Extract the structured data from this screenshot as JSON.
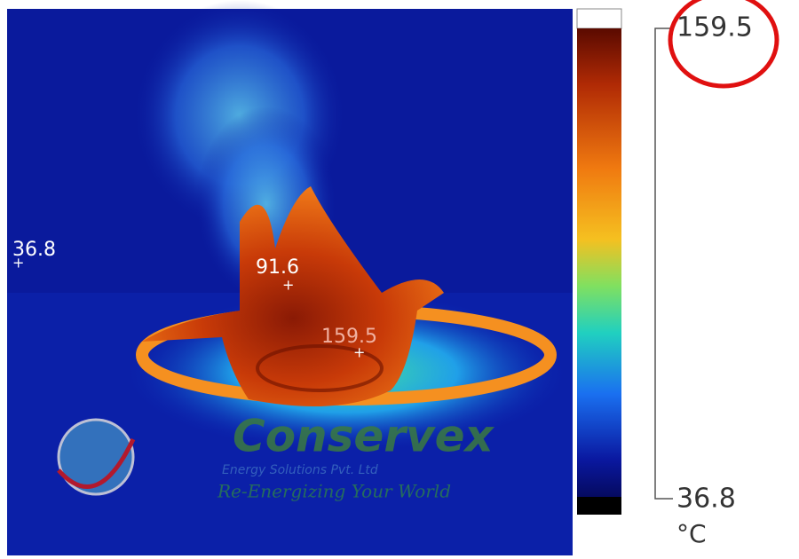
{
  "spots": [
    {
      "label": "36.8"
    },
    {
      "label": "91.6"
    },
    {
      "label": "159.5"
    }
  ],
  "scale": {
    "max": "159.5",
    "min": "36.8",
    "unit": "°C"
  },
  "watermark": {
    "brand": "Conservex",
    "tagline": "Energy Solutions Pvt. Ltd",
    "slogan": "Re-Energizing Your World"
  }
}
